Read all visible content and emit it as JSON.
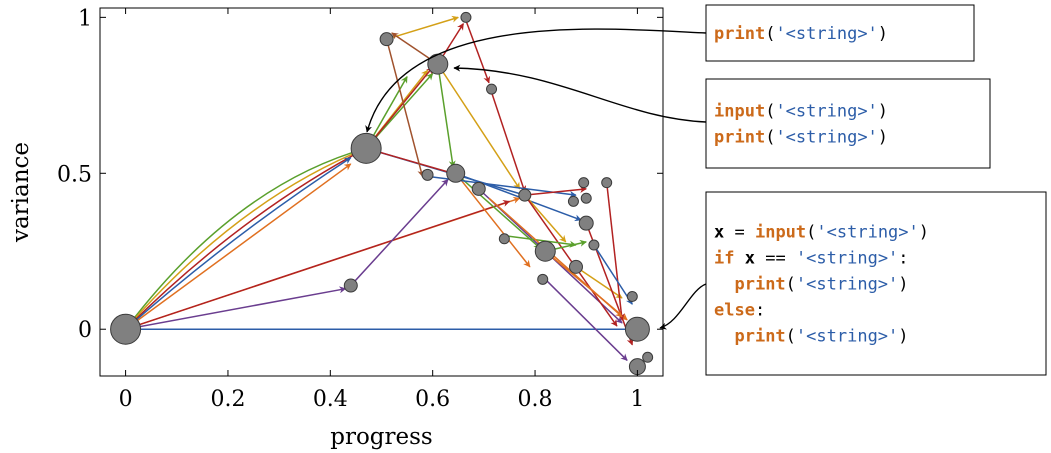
{
  "chart_data": {
    "type": "scatter",
    "xlabel": "progress",
    "ylabel": "variance",
    "xlim": [
      -0.05,
      1.05
    ],
    "ylim": [
      -0.15,
      1.03
    ],
    "xticks": [
      0,
      0.2,
      0.4,
      0.6,
      0.8,
      1
    ],
    "yticks": [
      0,
      0.5,
      1
    ],
    "tick_labels_x": [
      "0",
      "0.2",
      "0.4",
      "0.6",
      "0.8",
      "1"
    ],
    "tick_labels_y": [
      "0",
      "0.5",
      "1"
    ],
    "grid": false,
    "legend": "none",
    "series_colors": [
      "#5aa02c",
      "#d4a017",
      "#b22222",
      "#2c5da8",
      "#e07020",
      "#6a3d8f",
      "#a0522d"
    ],
    "points": [
      {
        "x": 0.0,
        "y": 0.0,
        "size": 3
      },
      {
        "x": 0.47,
        "y": 0.58,
        "size": 3
      },
      {
        "x": 1.0,
        "y": 0.0,
        "size": 2.4
      },
      {
        "x": 0.61,
        "y": 0.85,
        "size": 2
      },
      {
        "x": 0.51,
        "y": 0.93,
        "size": 1.3
      },
      {
        "x": 0.665,
        "y": 1.0,
        "size": 1
      },
      {
        "x": 0.715,
        "y": 0.77,
        "size": 1
      },
      {
        "x": 0.645,
        "y": 0.5,
        "size": 1.8
      },
      {
        "x": 0.59,
        "y": 0.495,
        "size": 1.1
      },
      {
        "x": 0.69,
        "y": 0.45,
        "size": 1.3
      },
      {
        "x": 0.78,
        "y": 0.43,
        "size": 1.2
      },
      {
        "x": 0.82,
        "y": 0.25,
        "size": 2
      },
      {
        "x": 0.74,
        "y": 0.29,
        "size": 1
      },
      {
        "x": 0.815,
        "y": 0.16,
        "size": 1
      },
      {
        "x": 0.88,
        "y": 0.2,
        "size": 1.3
      },
      {
        "x": 0.9,
        "y": 0.34,
        "size": 1.4
      },
      {
        "x": 0.915,
        "y": 0.27,
        "size": 1
      },
      {
        "x": 0.875,
        "y": 0.41,
        "size": 1
      },
      {
        "x": 0.9,
        "y": 0.42,
        "size": 1
      },
      {
        "x": 0.94,
        "y": 0.47,
        "size": 1
      },
      {
        "x": 0.895,
        "y": 0.47,
        "size": 1
      },
      {
        "x": 0.44,
        "y": 0.14,
        "size": 1.3
      },
      {
        "x": 0.99,
        "y": 0.105,
        "size": 1
      },
      {
        "x": 1.0,
        "y": -0.12,
        "size": 1.6
      },
      {
        "x": 1.02,
        "y": -0.09,
        "size": 1
      }
    ],
    "transitions": [
      {
        "from": [
          0.0,
          0.0
        ],
        "to": [
          0.47,
          0.58
        ],
        "color": "#5aa02c",
        "curve": 0.22
      },
      {
        "from": [
          0.0,
          0.0
        ],
        "to": [
          0.47,
          0.58
        ],
        "color": "#d4a017",
        "curve": 0.16
      },
      {
        "from": [
          0.0,
          0.0
        ],
        "to": [
          0.47,
          0.58
        ],
        "color": "#b22222",
        "curve": 0.1
      },
      {
        "from": [
          0.0,
          0.0
        ],
        "to": [
          0.44,
          0.55
        ],
        "color": "#2c5da8",
        "curve": 0.05
      },
      {
        "from": [
          0.0,
          0.0
        ],
        "to": [
          0.44,
          0.53
        ],
        "color": "#e07020",
        "curve": 0.0
      },
      {
        "from": [
          0.0,
          0.0
        ],
        "to": [
          1.0,
          0.0
        ],
        "color": "#2c5da8",
        "curve": 0.0
      },
      {
        "from": [
          0.0,
          0.0
        ],
        "to": [
          0.43,
          0.13
        ],
        "color": "#6a3d8f",
        "curve": 0.0
      },
      {
        "from": [
          0.0,
          0.0
        ],
        "to": [
          0.77,
          0.42
        ],
        "color": "#e07020",
        "curve": 0.0
      },
      {
        "from": [
          0.0,
          0.0
        ],
        "to": [
          0.75,
          0.41
        ],
        "color": "#b22222",
        "curve": 0.0
      },
      {
        "from": [
          0.44,
          0.14
        ],
        "to": [
          0.63,
          0.48
        ],
        "color": "#6a3d8f",
        "curve": 0.0
      },
      {
        "from": [
          0.47,
          0.58
        ],
        "to": [
          0.6,
          0.82
        ],
        "color": "#5aa02c",
        "curve": 0.0
      },
      {
        "from": [
          0.47,
          0.58
        ],
        "to": [
          0.59,
          0.83
        ],
        "color": "#d4a017",
        "curve": 0.0
      },
      {
        "from": [
          0.47,
          0.58
        ],
        "to": [
          0.6,
          0.84
        ],
        "color": "#b22222",
        "curve": 0.0
      },
      {
        "from": [
          0.47,
          0.58
        ],
        "to": [
          0.55,
          0.81
        ],
        "color": "#5aa02c",
        "curve": 0.0
      },
      {
        "from": [
          0.47,
          0.58
        ],
        "to": [
          0.78,
          0.43
        ],
        "color": "#2c5da8",
        "curve": 0.0
      },
      {
        "from": [
          0.47,
          0.58
        ],
        "to": [
          0.66,
          0.49
        ],
        "color": "#b22222",
        "curve": 0.0
      },
      {
        "from": [
          0.51,
          0.93
        ],
        "to": [
          0.58,
          0.49
        ],
        "color": "#a0522d",
        "curve": 0.0
      },
      {
        "from": [
          0.51,
          0.93
        ],
        "to": [
          0.65,
          1.0
        ],
        "color": "#d4a017",
        "curve": 0.0
      },
      {
        "from": [
          0.61,
          0.85
        ],
        "to": [
          0.52,
          0.95
        ],
        "color": "#a0522d",
        "curve": 0.0
      },
      {
        "from": [
          0.61,
          0.85
        ],
        "to": [
          0.64,
          0.52
        ],
        "color": "#5aa02c",
        "curve": 0.0
      },
      {
        "from": [
          0.61,
          0.85
        ],
        "to": [
          0.77,
          0.45
        ],
        "color": "#d4a017",
        "curve": 0.0
      },
      {
        "from": [
          0.61,
          0.85
        ],
        "to": [
          0.66,
          0.98
        ],
        "color": "#b22222",
        "curve": 0.0
      },
      {
        "from": [
          0.665,
          0.99
        ],
        "to": [
          0.71,
          0.79
        ],
        "color": "#b22222",
        "curve": 0.0
      },
      {
        "from": [
          0.715,
          0.76
        ],
        "to": [
          0.78,
          0.44
        ],
        "color": "#b22222",
        "curve": 0.0
      },
      {
        "from": [
          0.645,
          0.5
        ],
        "to": [
          0.81,
          0.26
        ],
        "color": "#5aa02c",
        "curve": 0.0
      },
      {
        "from": [
          0.645,
          0.5
        ],
        "to": [
          0.89,
          0.35
        ],
        "color": "#2c5da8",
        "curve": 0.0
      },
      {
        "from": [
          0.645,
          0.5
        ],
        "to": [
          0.79,
          0.2
        ],
        "color": "#e07020",
        "curve": 0.0
      },
      {
        "from": [
          0.69,
          0.45
        ],
        "to": [
          0.97,
          0.02
        ],
        "color": "#6a3d8f",
        "curve": 0.0
      },
      {
        "from": [
          0.59,
          0.49
        ],
        "to": [
          0.88,
          0.43
        ],
        "color": "#2c5da8",
        "curve": 0.0
      },
      {
        "from": [
          0.78,
          0.43
        ],
        "to": [
          0.9,
          0.45
        ],
        "color": "#b22222",
        "curve": 0.0
      },
      {
        "from": [
          0.78,
          0.43
        ],
        "to": [
          0.86,
          0.28
        ],
        "color": "#d4a017",
        "curve": 0.0
      },
      {
        "from": [
          0.78,
          0.43
        ],
        "to": [
          0.96,
          0.01
        ],
        "color": "#b22222",
        "curve": 0.0
      },
      {
        "from": [
          0.82,
          0.25
        ],
        "to": [
          0.9,
          0.28
        ],
        "color": "#5aa02c",
        "curve": 0.0
      },
      {
        "from": [
          0.82,
          0.25
        ],
        "to": [
          0.98,
          0.03
        ],
        "color": "#e07020",
        "curve": 0.0
      },
      {
        "from": [
          0.74,
          0.3
        ],
        "to": [
          0.88,
          0.27
        ],
        "color": "#5aa02c",
        "curve": 0.0
      },
      {
        "from": [
          0.88,
          0.2
        ],
        "to": [
          0.97,
          0.1
        ],
        "color": "#d4a017",
        "curve": 0.0
      },
      {
        "from": [
          0.9,
          0.34
        ],
        "to": [
          0.99,
          -0.05
        ],
        "color": "#b22222",
        "curve": 0.0
      },
      {
        "from": [
          0.94,
          0.47
        ],
        "to": [
          0.97,
          0.03
        ],
        "color": "#b22222",
        "curve": 0.0
      },
      {
        "from": [
          0.915,
          0.27
        ],
        "to": [
          0.99,
          0.08
        ],
        "color": "#2c5da8",
        "curve": 0.0
      },
      {
        "from": [
          0.82,
          0.16
        ],
        "to": [
          0.98,
          -0.1
        ],
        "color": "#6a3d8f",
        "curve": 0.0
      },
      {
        "from": [
          0.71,
          0.42
        ],
        "to": [
          0.97,
          0.04
        ],
        "color": "#e07020",
        "curve": 0.0
      }
    ]
  },
  "callouts": [
    {
      "lines": [
        [
          {
            "t": "print",
            "c": "kw"
          },
          {
            "t": "(",
            "c": "plain"
          },
          {
            "t": "'<string>'",
            "c": "str"
          },
          {
            "t": ")",
            "c": "plain"
          }
        ]
      ]
    },
    {
      "lines": [
        [
          {
            "t": "input",
            "c": "kw"
          },
          {
            "t": "(",
            "c": "plain"
          },
          {
            "t": "'<string>'",
            "c": "str"
          },
          {
            "t": ")",
            "c": "plain"
          }
        ],
        [
          {
            "t": "print",
            "c": "kw"
          },
          {
            "t": "(",
            "c": "plain"
          },
          {
            "t": "'<string>'",
            "c": "str"
          },
          {
            "t": ")",
            "c": "plain"
          }
        ]
      ]
    },
    {
      "lines": [
        [
          {
            "t": "x",
            "c": "var"
          },
          {
            "t": " = ",
            "c": "plain"
          },
          {
            "t": "input",
            "c": "kw"
          },
          {
            "t": "(",
            "c": "plain"
          },
          {
            "t": "'<string>'",
            "c": "str"
          },
          {
            "t": ")",
            "c": "plain"
          }
        ],
        [
          {
            "t": "if",
            "c": "kw"
          },
          {
            "t": " ",
            "c": "plain"
          },
          {
            "t": "x",
            "c": "var"
          },
          {
            "t": " == ",
            "c": "plain"
          },
          {
            "t": "'<string>'",
            "c": "str"
          },
          {
            "t": ":",
            "c": "plain"
          }
        ],
        [
          {
            "t": "  ",
            "c": "plain"
          },
          {
            "t": "print",
            "c": "kw"
          },
          {
            "t": "(",
            "c": "plain"
          },
          {
            "t": "'<string>'",
            "c": "str"
          },
          {
            "t": ")",
            "c": "plain"
          }
        ],
        [
          {
            "t": "else",
            "c": "kw"
          },
          {
            "t": ":",
            "c": "plain"
          }
        ],
        [
          {
            "t": "  ",
            "c": "plain"
          },
          {
            "t": "print",
            "c": "kw"
          },
          {
            "t": "(",
            "c": "plain"
          },
          {
            "t": "'<string>'",
            "c": "str"
          },
          {
            "t": ")",
            "c": "plain"
          }
        ]
      ]
    }
  ]
}
